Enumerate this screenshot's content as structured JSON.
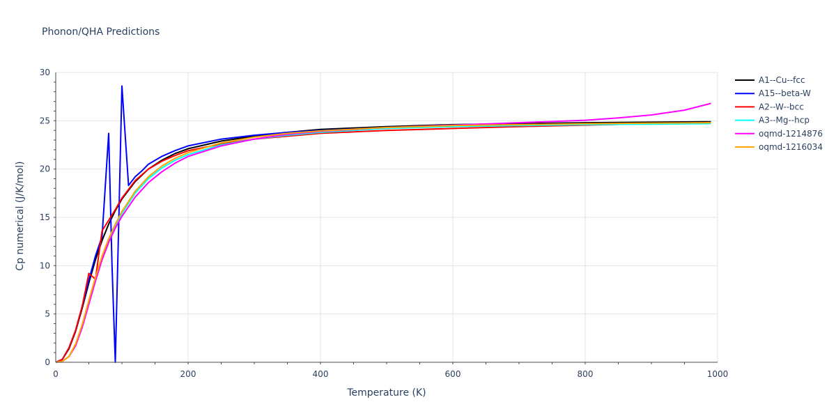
{
  "chart_data": {
    "type": "line",
    "title": "Phonon/QHA Predictions",
    "xlabel": "Temperature (K)",
    "ylabel": "Cp numerical (J/K/mol)",
    "xlim": [
      0,
      1000
    ],
    "ylim": [
      0,
      30
    ],
    "x_ticks": [
      0,
      200,
      400,
      600,
      800,
      1000
    ],
    "y_ticks": [
      0,
      5,
      10,
      15,
      20,
      25,
      30
    ],
    "grid": true,
    "legend_position": "right",
    "series": [
      {
        "name": "A1--Cu--fcc",
        "color": "#000000",
        "points": [
          [
            0,
            0
          ],
          [
            10,
            0.3
          ],
          [
            20,
            1.4
          ],
          [
            30,
            3.2
          ],
          [
            40,
            5.6
          ],
          [
            50,
            8.2
          ],
          [
            60,
            10.6
          ],
          [
            70,
            12.6
          ],
          [
            80,
            14.3
          ],
          [
            90,
            15.7
          ],
          [
            100,
            16.9
          ],
          [
            120,
            18.7
          ],
          [
            140,
            20.0
          ],
          [
            160,
            20.9
          ],
          [
            180,
            21.6
          ],
          [
            200,
            22.1
          ],
          [
            250,
            22.9
          ],
          [
            300,
            23.4
          ],
          [
            350,
            23.8
          ],
          [
            400,
            24.1
          ],
          [
            500,
            24.4
          ],
          [
            600,
            24.6
          ],
          [
            700,
            24.7
          ],
          [
            800,
            24.8
          ],
          [
            900,
            24.85
          ],
          [
            990,
            24.9
          ]
        ]
      },
      {
        "name": "A15--beta-W",
        "color": "#0000ff",
        "points": [
          [
            0,
            0
          ],
          [
            10,
            0.3
          ],
          [
            20,
            1.5
          ],
          [
            30,
            3.3
          ],
          [
            40,
            5.8
          ],
          [
            50,
            8.5
          ],
          [
            60,
            11.0
          ],
          [
            70,
            13.0
          ],
          [
            80,
            23.7
          ],
          [
            85,
            10.0
          ],
          [
            90,
            0
          ],
          [
            95,
            14.0
          ],
          [
            100,
            28.6
          ],
          [
            110,
            18.3
          ],
          [
            120,
            19.2
          ],
          [
            130,
            19.8
          ],
          [
            140,
            20.5
          ],
          [
            160,
            21.3
          ],
          [
            180,
            21.9
          ],
          [
            200,
            22.4
          ],
          [
            250,
            23.1
          ],
          [
            300,
            23.5
          ],
          [
            350,
            23.8
          ],
          [
            400,
            24.0
          ],
          [
            500,
            24.3
          ],
          [
            600,
            24.5
          ],
          [
            700,
            24.6
          ],
          [
            800,
            24.7
          ],
          [
            900,
            24.7
          ],
          [
            990,
            24.7
          ]
        ]
      },
      {
        "name": "A2--W--bcc",
        "color": "#ff0000",
        "points": [
          [
            0,
            0
          ],
          [
            10,
            0.3
          ],
          [
            20,
            1.5
          ],
          [
            30,
            3.3
          ],
          [
            40,
            5.8
          ],
          [
            50,
            9.2
          ],
          [
            60,
            8.6
          ],
          [
            70,
            13.6
          ],
          [
            80,
            14.7
          ],
          [
            90,
            15.8
          ],
          [
            100,
            17.0
          ],
          [
            120,
            18.8
          ],
          [
            140,
            20.0
          ],
          [
            160,
            20.8
          ],
          [
            180,
            21.4
          ],
          [
            200,
            21.9
          ],
          [
            250,
            22.6
          ],
          [
            300,
            23.1
          ],
          [
            350,
            23.4
          ],
          [
            400,
            23.7
          ],
          [
            500,
            24.0
          ],
          [
            600,
            24.2
          ],
          [
            700,
            24.4
          ],
          [
            800,
            24.55
          ],
          [
            900,
            24.7
          ],
          [
            990,
            24.8
          ]
        ]
      },
      {
        "name": "A3--Mg--hcp",
        "color": "#00ffff",
        "points": [
          [
            0,
            0
          ],
          [
            10,
            0.1
          ],
          [
            20,
            0.6
          ],
          [
            30,
            1.8
          ],
          [
            40,
            3.8
          ],
          [
            50,
            6.2
          ],
          [
            60,
            8.6
          ],
          [
            70,
            10.8
          ],
          [
            80,
            12.6
          ],
          [
            90,
            14.1
          ],
          [
            100,
            15.4
          ],
          [
            120,
            17.5
          ],
          [
            140,
            19.0
          ],
          [
            160,
            20.1
          ],
          [
            180,
            20.9
          ],
          [
            200,
            21.5
          ],
          [
            250,
            22.5
          ],
          [
            300,
            23.1
          ],
          [
            350,
            23.5
          ],
          [
            400,
            23.8
          ],
          [
            500,
            24.2
          ],
          [
            600,
            24.4
          ],
          [
            700,
            24.5
          ],
          [
            800,
            24.6
          ],
          [
            900,
            24.65
          ],
          [
            990,
            24.7
          ]
        ]
      },
      {
        "name": "oqmd-1214876",
        "color": "#ff00ff",
        "points": [
          [
            0,
            0
          ],
          [
            10,
            0.1
          ],
          [
            20,
            0.6
          ],
          [
            30,
            1.7
          ],
          [
            40,
            3.6
          ],
          [
            50,
            6.0
          ],
          [
            60,
            8.4
          ],
          [
            70,
            10.6
          ],
          [
            80,
            12.4
          ],
          [
            90,
            13.9
          ],
          [
            100,
            15.1
          ],
          [
            120,
            17.1
          ],
          [
            140,
            18.6
          ],
          [
            160,
            19.7
          ],
          [
            180,
            20.6
          ],
          [
            200,
            21.3
          ],
          [
            250,
            22.4
          ],
          [
            300,
            23.1
          ],
          [
            350,
            23.6
          ],
          [
            400,
            23.9
          ],
          [
            500,
            24.3
          ],
          [
            600,
            24.55
          ],
          [
            700,
            24.8
          ],
          [
            800,
            25.05
          ],
          [
            850,
            25.3
          ],
          [
            900,
            25.6
          ],
          [
            950,
            26.1
          ],
          [
            990,
            26.8
          ]
        ]
      },
      {
        "name": "oqmd-1216034",
        "color": "#ffa500",
        "points": [
          [
            0,
            0
          ],
          [
            10,
            0.1
          ],
          [
            20,
            0.6
          ],
          [
            30,
            1.9
          ],
          [
            40,
            3.9
          ],
          [
            50,
            6.4
          ],
          [
            60,
            8.8
          ],
          [
            70,
            11.0
          ],
          [
            80,
            12.8
          ],
          [
            90,
            14.3
          ],
          [
            100,
            15.6
          ],
          [
            120,
            17.7
          ],
          [
            140,
            19.2
          ],
          [
            160,
            20.3
          ],
          [
            180,
            21.1
          ],
          [
            200,
            21.7
          ],
          [
            250,
            22.7
          ],
          [
            300,
            23.3
          ],
          [
            350,
            23.7
          ],
          [
            400,
            23.95
          ],
          [
            500,
            24.3
          ],
          [
            600,
            24.5
          ],
          [
            700,
            24.6
          ],
          [
            800,
            24.7
          ],
          [
            900,
            24.75
          ],
          [
            990,
            24.8
          ]
        ]
      }
    ]
  }
}
